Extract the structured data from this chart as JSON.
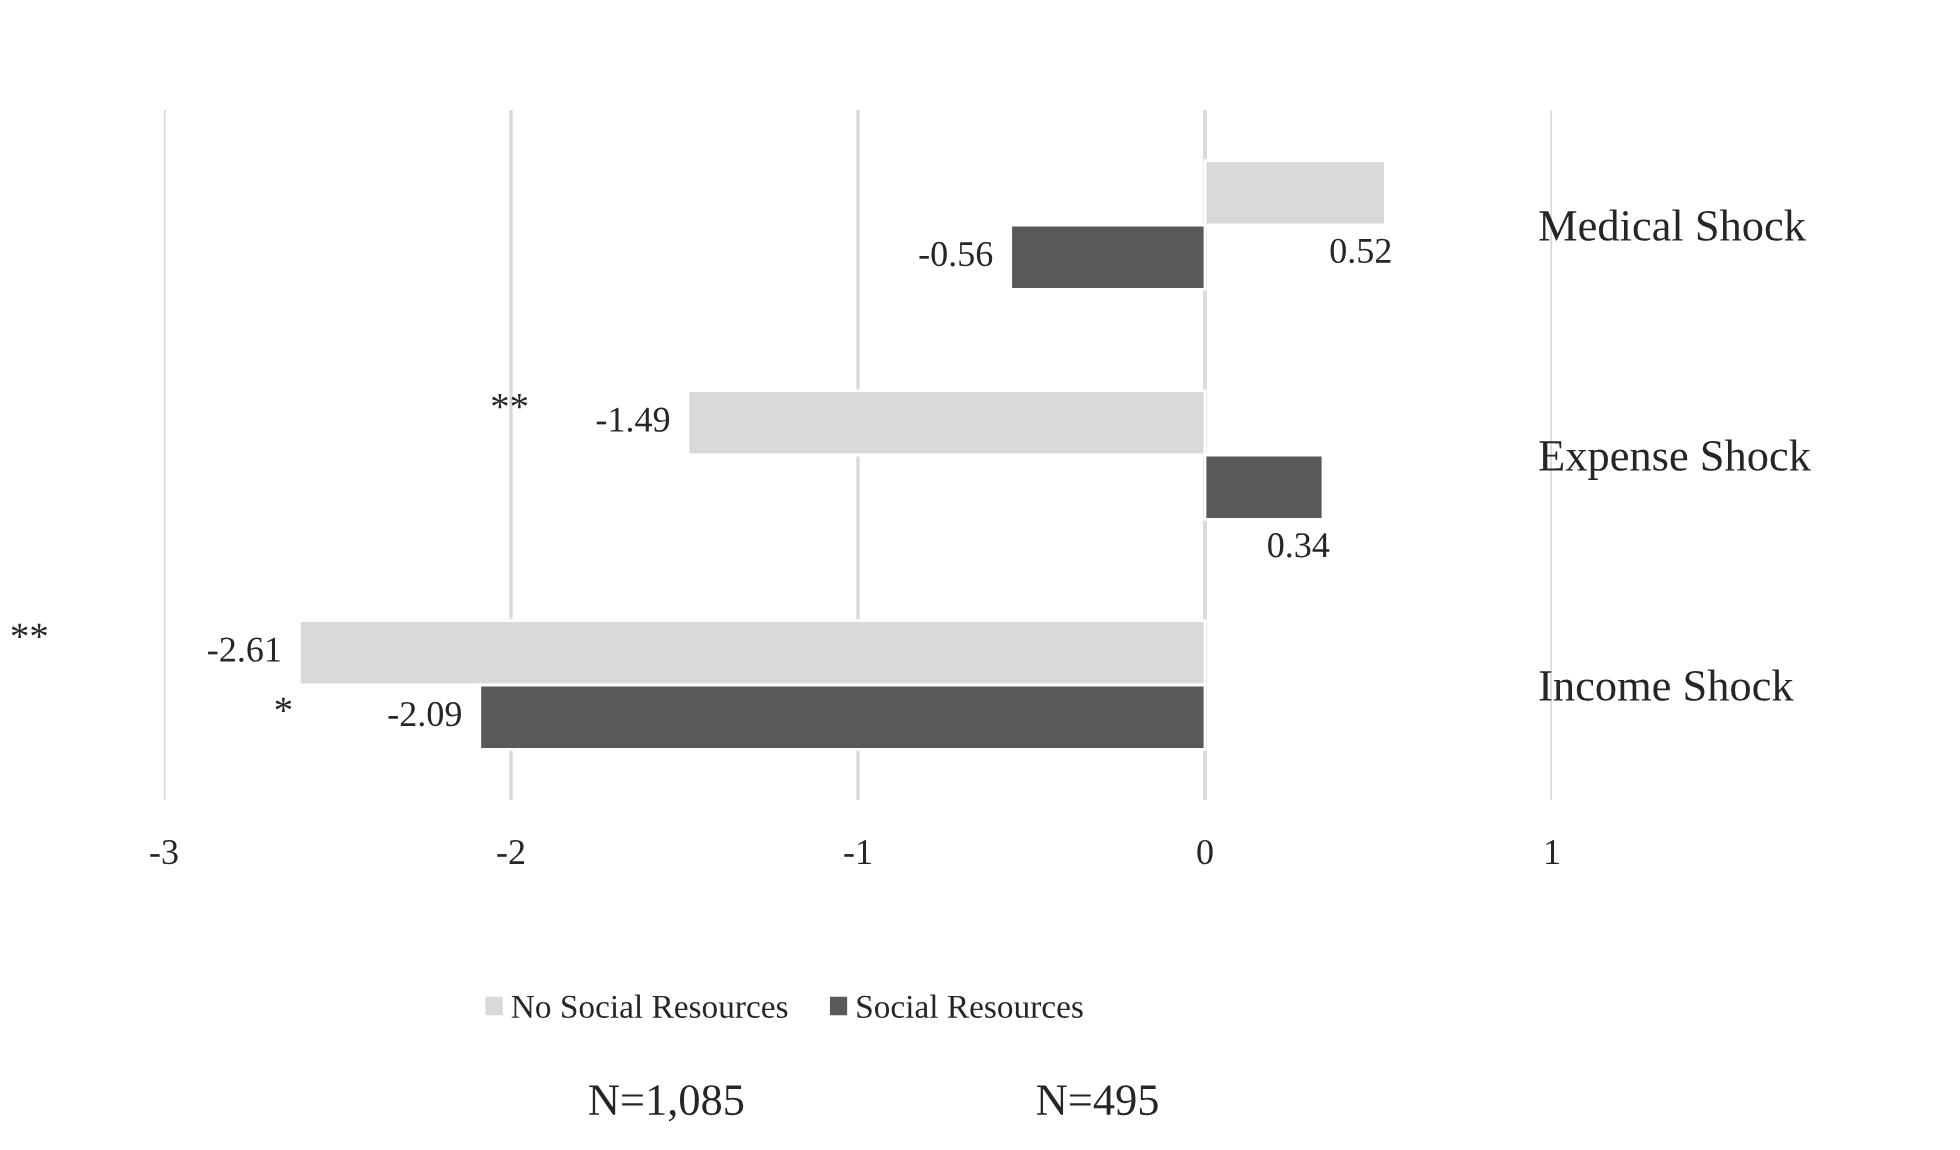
{
  "chart_data": {
    "type": "bar",
    "orientation": "horizontal",
    "categories": [
      "Medical Shock",
      "Expense Shock",
      "Income Shock"
    ],
    "series": [
      {
        "name": "No Social Resources",
        "color": "#d9d9d9",
        "values": [
          0.52,
          -1.49,
          -2.61
        ]
      },
      {
        "name": "Social Resources",
        "color": "#595959",
        "values": [
          -0.56,
          0.34,
          -2.09
        ]
      }
    ],
    "xlim": [
      -3,
      1
    ],
    "xticks": [
      -3,
      -2,
      -1,
      0,
      1
    ],
    "grid": "x",
    "legend": "bottom",
    "data_labels": true,
    "annotations": [
      "**",
      "**",
      "*",
      "N=1,085",
      "N=495"
    ]
  }
}
